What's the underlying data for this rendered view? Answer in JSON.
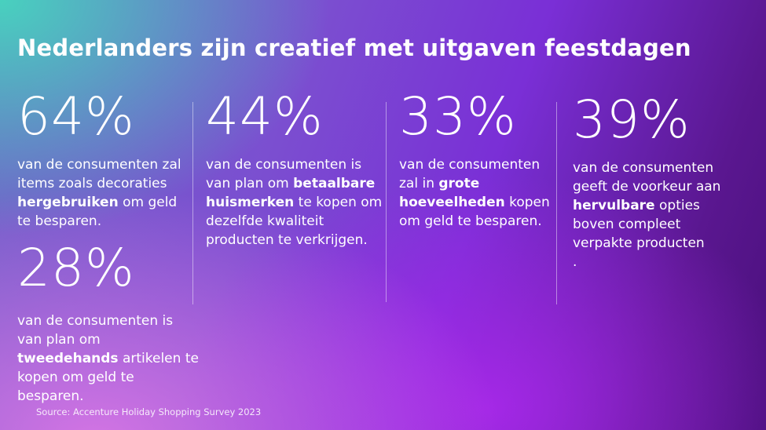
{
  "title": "Nederlanders zijn creatief met uitgaven feestdagen",
  "stats": [
    {
      "value": "64%",
      "pre": "van de consumenten zal items zoals decoraties ",
      "bold": "hergebruiken",
      "post": " om geld te besparen."
    },
    {
      "value": "44%",
      "pre": "van de consumenten is van plan om ",
      "bold": "betaalbare huismerken",
      "post": " te kopen om dezelfde kwaliteit producten te verkrijgen."
    },
    {
      "value": "33%",
      "pre": "van de consumenten zal in ",
      "bold": "grote hoeveelheden",
      "post": " kopen om geld te besparen."
    },
    {
      "value": "39%",
      "pre": "van de consumenten geeft de voorkeur aan ",
      "bold": "hervulbare",
      "post": " opties boven compleet verpakte producten",
      "trail": "."
    },
    {
      "value": "28%",
      "pre": "van de consumenten is van plan om ",
      "bold": "tweedehands",
      "post": " artikelen te kopen om geld te besparen."
    }
  ],
  "source": "Source: Accenture Holiday Shopping Survey 2023"
}
